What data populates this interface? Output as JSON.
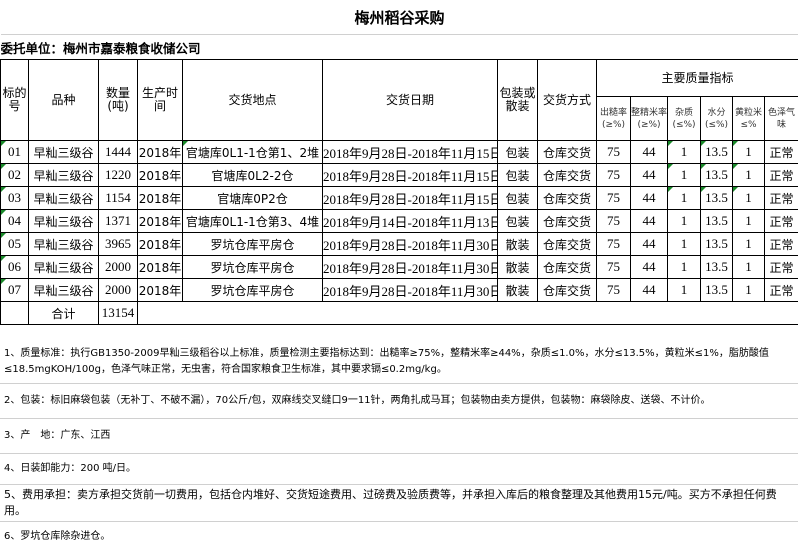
{
  "title": "梅州稻谷采购",
  "client": "委托单位：梅州市嘉泰粮食收储公司",
  "headers": {
    "no": "标的号",
    "variety": "品种",
    "qty": "数量(吨)",
    "prod": "生产时间",
    "place": "交货地点",
    "date": "交货日期",
    "pack": "包装或散装",
    "method": "交货方式",
    "quality": "主要质量指标",
    "q": [
      "出糙率(≥%)",
      "整精米率(≥%)",
      "杂质(≤%)",
      "水分(≤%)",
      "黄粒米≤%",
      "色泽气味"
    ]
  },
  "rows": [
    {
      "no": "01",
      "variety": "早籼三级谷",
      "qty": "1444",
      "prod": "2018年",
      "place": "官塘库0L1-1仓第1、2堆",
      "date": "2018年9月28日-2018年11月15日",
      "pack": "包装",
      "method": "仓库交货",
      "q": [
        "75",
        "44",
        "1",
        "13.5",
        "1",
        "正常"
      ]
    },
    {
      "no": "02",
      "variety": "早籼三级谷",
      "qty": "1220",
      "prod": "2018年",
      "place": "官塘库0L2-2仓",
      "date": "2018年9月28日-2018年11月15日",
      "pack": "包装",
      "method": "仓库交货",
      "q": [
        "75",
        "44",
        "1",
        "13.5",
        "1",
        "正常"
      ]
    },
    {
      "no": "03",
      "variety": "早籼三级谷",
      "qty": "1154",
      "prod": "2018年",
      "place": "官塘库0P2仓",
      "date": "2018年9月28日-2018年11月15日",
      "pack": "包装",
      "method": "仓库交货",
      "q": [
        "75",
        "44",
        "1",
        "13.5",
        "1",
        "正常"
      ]
    },
    {
      "no": "04",
      "variety": "早籼三级谷",
      "qty": "1371",
      "prod": "2018年",
      "place": "官塘库0L1-1仓第3、4堆",
      "date": "2018年9月14日-2018年11月13日",
      "pack": "包装",
      "method": "仓库交货",
      "q": [
        "75",
        "44",
        "1",
        "13.5",
        "1",
        "正常"
      ]
    },
    {
      "no": "05",
      "variety": "早籼三级谷",
      "qty": "3965",
      "prod": "2018年",
      "place": "罗坑仓库平房仓",
      "date": "2018年9月28日-2018年11月30日",
      "pack": "散装",
      "method": "仓库交货",
      "q": [
        "75",
        "44",
        "1",
        "13.5",
        "1",
        "正常"
      ]
    },
    {
      "no": "06",
      "variety": "早籼三级谷",
      "qty": "2000",
      "prod": "2018年",
      "place": "罗坑仓库平房仓",
      "date": "2018年9月28日-2018年11月30日",
      "pack": "散装",
      "method": "仓库交货",
      "q": [
        "75",
        "44",
        "1",
        "13.5",
        "1",
        "正常"
      ]
    },
    {
      "no": "07",
      "variety": "早籼三级谷",
      "qty": "2000",
      "prod": "2018年",
      "place": "罗坑仓库平房仓",
      "date": "2018年9月28日-2018年11月30日",
      "pack": "散装",
      "method": "仓库交货",
      "q": [
        "75",
        "44",
        "1",
        "13.5",
        "1",
        "正常"
      ]
    }
  ],
  "total": {
    "label": "合计",
    "qty": "13154"
  },
  "notes": [
    "1、质量标准：执行GB1350-2009早籼三级稻谷以上标准，质量检测主要指标达到：出糙率≥75%，整精米率≥44%，杂质≤1.0%，水分≤13.5%，黄粒米≤1%，脂肪酸值≤18.5mgKOH/100g，色泽气味正常，无虫害，符合国家粮食卫生标准，其中要求镉≤0.2mg/kg。",
    "2、包装：标旧麻袋包装（无补丁、不破不漏），70公斤/包，双麻线交叉缝口9一11针，两角扎成马耳；包装物由卖方提供，包装物：麻袋除皮、送袋、不计价。",
    "3、产　地：广东、江西",
    "4、日装卸能力：200 吨/日。",
    "5、费用承担：卖方承担交货前一切费用，包括仓内堆好、交货短途费用、过磅费及验质费等，并承担入库后的粮食整理及其他费用15元/吨。买方不承担任何费用。",
    "6、罗坑仓库除杂进仓。"
  ]
}
